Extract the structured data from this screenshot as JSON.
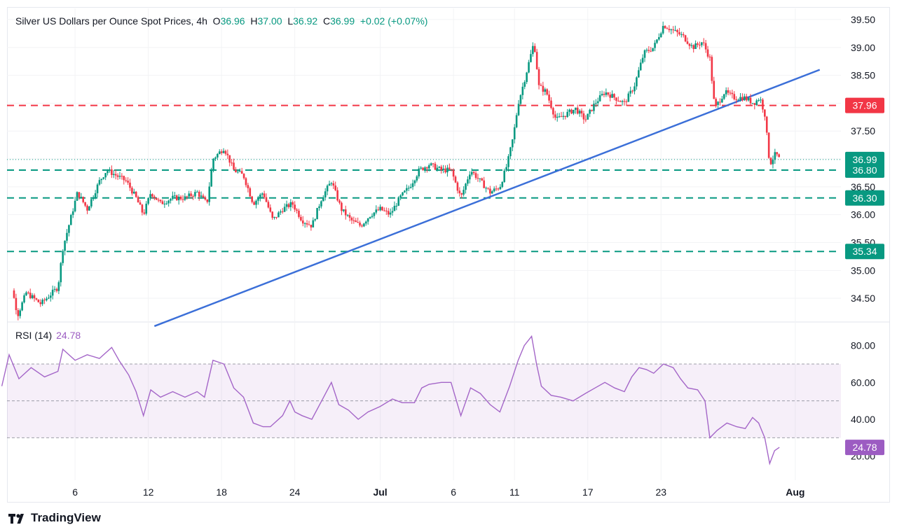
{
  "header": {
    "title": "Silver US Dollars per Ounce Spot Prices, 4h",
    "open_label": "O",
    "open": "36.96",
    "high_label": "H",
    "high": "37.00",
    "low_label": "L",
    "low": "36.92",
    "close_label": "C",
    "close": "36.99",
    "change": "+0.02 (+0.07%)"
  },
  "rsi_header": {
    "label": "RSI (14)",
    "value": "24.78"
  },
  "footer": {
    "brand": "TradingView"
  },
  "colors": {
    "up": "#089981",
    "down": "#f23645",
    "trend": "#3b6fd8",
    "rsi": "#a466c8",
    "support": "#089981",
    "resistance": "#f23645"
  },
  "chart_data": [
    {
      "type": "candlestick",
      "title": "Silver US Dollars per Ounce Spot Prices, 4h",
      "timeframe": "4h",
      "y_ticks": [
        "34.50",
        "35.00",
        "35.50",
        "36.00",
        "36.50",
        "37.00",
        "37.50",
        "38.00",
        "38.50",
        "39.00",
        "39.50"
      ],
      "ylim": [
        34.1,
        39.7
      ],
      "x_ticks": [
        {
          "label": "6",
          "d": 6
        },
        {
          "label": "12",
          "d": 12
        },
        {
          "label": "18",
          "d": 18
        },
        {
          "label": "24",
          "d": 24
        },
        {
          "label": "Jul",
          "d": 31
        },
        {
          "label": "6",
          "d": 37
        },
        {
          "label": "11",
          "d": 42
        },
        {
          "label": "17",
          "d": 48
        },
        {
          "label": "23",
          "d": 54
        },
        {
          "label": "Aug",
          "d": 65
        }
      ],
      "price_path": [
        [
          0.0,
          34.3
        ],
        [
          0.7,
          34.8
        ],
        [
          1.3,
          34.2
        ],
        [
          2.0,
          34.6
        ],
        [
          3.2,
          34.4
        ],
        [
          4.6,
          34.7
        ],
        [
          5.0,
          35.4
        ],
        [
          5.6,
          35.9
        ],
        [
          6.2,
          36.4
        ],
        [
          7.0,
          36.1
        ],
        [
          8.0,
          36.6
        ],
        [
          8.6,
          36.8
        ],
        [
          9.4,
          36.7
        ],
        [
          10.2,
          36.6
        ],
        [
          11.0,
          36.3
        ],
        [
          11.6,
          36.0
        ],
        [
          12.2,
          36.4
        ],
        [
          13.0,
          36.2
        ],
        [
          14.0,
          36.3
        ],
        [
          15.0,
          36.3
        ],
        [
          16.0,
          36.4
        ],
        [
          16.8,
          36.2
        ],
        [
          17.3,
          37.0
        ],
        [
          18.2,
          37.2
        ],
        [
          19.0,
          36.8
        ],
        [
          19.8,
          36.7
        ],
        [
          20.6,
          36.2
        ],
        [
          21.4,
          36.4
        ],
        [
          22.2,
          35.9
        ],
        [
          23.0,
          36.1
        ],
        [
          23.8,
          36.2
        ],
        [
          24.6,
          35.9
        ],
        [
          25.4,
          35.8
        ],
        [
          26.2,
          36.3
        ],
        [
          27.0,
          36.6
        ],
        [
          27.8,
          36.1
        ],
        [
          28.6,
          35.9
        ],
        [
          29.4,
          35.8
        ],
        [
          30.2,
          36.0
        ],
        [
          31.0,
          36.1
        ],
        [
          31.8,
          36.0
        ],
        [
          32.6,
          36.3
        ],
        [
          33.4,
          36.5
        ],
        [
          34.2,
          36.8
        ],
        [
          35.0,
          36.9
        ],
        [
          36.0,
          36.8
        ],
        [
          36.8,
          36.8
        ],
        [
          37.6,
          36.3
        ],
        [
          38.4,
          36.8
        ],
        [
          39.2,
          36.6
        ],
        [
          40.0,
          36.4
        ],
        [
          40.8,
          36.5
        ],
        [
          41.4,
          36.9
        ],
        [
          41.9,
          37.4
        ],
        [
          42.3,
          38.0
        ],
        [
          42.8,
          38.4
        ],
        [
          43.6,
          39.1
        ],
        [
          44.0,
          38.3
        ],
        [
          44.6,
          38.2
        ],
        [
          45.4,
          37.7
        ],
        [
          46.2,
          37.8
        ],
        [
          47.0,
          37.9
        ],
        [
          47.8,
          37.7
        ],
        [
          48.6,
          38.0
        ],
        [
          49.4,
          38.2
        ],
        [
          50.2,
          38.1
        ],
        [
          51.0,
          38.0
        ],
        [
          51.8,
          38.3
        ],
        [
          52.6,
          38.9
        ],
        [
          53.4,
          39.0
        ],
        [
          54.2,
          39.4
        ],
        [
          55.0,
          39.3
        ],
        [
          55.8,
          39.2
        ],
        [
          56.6,
          39.0
        ],
        [
          57.4,
          39.1
        ],
        [
          58.0,
          38.8
        ],
        [
          58.4,
          37.9
        ],
        [
          59.2,
          38.2
        ],
        [
          60.0,
          38.1
        ],
        [
          60.8,
          38.1
        ],
        [
          61.6,
          38.0
        ],
        [
          62.1,
          38.1
        ],
        [
          62.5,
          37.8
        ],
        [
          62.9,
          36.9
        ],
        [
          63.4,
          37.1
        ],
        [
          63.7,
          36.99
        ]
      ],
      "levels": [
        {
          "label": "37.96",
          "value": 37.96,
          "style": "resistance"
        },
        {
          "label": "36.80",
          "value": 36.8,
          "style": "support"
        },
        {
          "label": "36.30",
          "value": 36.3,
          "style": "support"
        },
        {
          "label": "35.34",
          "value": 35.34,
          "style": "support"
        }
      ],
      "current_price": {
        "label": "36.99",
        "value": 36.99
      },
      "trendline": [
        [
          12.5,
          34.0
        ],
        [
          67.0,
          38.6
        ]
      ]
    },
    {
      "type": "line",
      "title": "RSI (14)",
      "value_label": "24.78",
      "y_ticks": [
        "20.00",
        "40.00",
        "60.00",
        "80.00"
      ],
      "ylim": [
        7,
        92
      ],
      "bands": {
        "upper": 70,
        "middle": 50,
        "lower": 30
      },
      "rsi_path": [
        [
          0.0,
          58
        ],
        [
          0.6,
          75
        ],
        [
          1.4,
          62
        ],
        [
          2.4,
          68
        ],
        [
          3.5,
          63
        ],
        [
          4.6,
          66
        ],
        [
          5.0,
          78
        ],
        [
          6.0,
          72
        ],
        [
          7.0,
          75
        ],
        [
          8.0,
          73
        ],
        [
          9.0,
          79
        ],
        [
          9.6,
          72
        ],
        [
          10.4,
          64
        ],
        [
          11.0,
          55
        ],
        [
          11.6,
          42
        ],
        [
          12.2,
          56
        ],
        [
          13.0,
          52
        ],
        [
          14.0,
          55
        ],
        [
          15.0,
          52
        ],
        [
          16.0,
          55
        ],
        [
          16.6,
          52
        ],
        [
          17.3,
          72
        ],
        [
          18.2,
          70
        ],
        [
          19.0,
          57
        ],
        [
          19.8,
          52
        ],
        [
          20.6,
          38
        ],
        [
          21.4,
          36
        ],
        [
          22.0,
          36
        ],
        [
          23.0,
          42
        ],
        [
          23.6,
          50
        ],
        [
          24.0,
          44
        ],
        [
          24.6,
          42
        ],
        [
          25.4,
          40
        ],
        [
          26.2,
          50
        ],
        [
          27.0,
          60
        ],
        [
          27.6,
          48
        ],
        [
          28.4,
          45
        ],
        [
          29.2,
          40
        ],
        [
          30.0,
          44
        ],
        [
          31.0,
          47
        ],
        [
          32.0,
          51
        ],
        [
          32.8,
          49
        ],
        [
          33.8,
          49
        ],
        [
          34.4,
          57
        ],
        [
          35.0,
          59
        ],
        [
          36.0,
          60
        ],
        [
          36.8,
          60
        ],
        [
          37.6,
          42
        ],
        [
          38.4,
          57
        ],
        [
          39.2,
          54
        ],
        [
          40.0,
          48
        ],
        [
          40.8,
          44
        ],
        [
          41.6,
          58
        ],
        [
          42.3,
          72
        ],
        [
          42.8,
          80
        ],
        [
          43.4,
          85
        ],
        [
          43.8,
          70
        ],
        [
          44.2,
          58
        ],
        [
          45.0,
          53
        ],
        [
          45.8,
          52
        ],
        [
          46.8,
          50
        ],
        [
          47.8,
          54
        ],
        [
          48.6,
          57
        ],
        [
          49.4,
          60
        ],
        [
          50.2,
          57
        ],
        [
          51.0,
          55
        ],
        [
          51.6,
          63
        ],
        [
          52.2,
          68
        ],
        [
          52.8,
          67
        ],
        [
          53.4,
          65
        ],
        [
          54.2,
          70
        ],
        [
          55.0,
          68
        ],
        [
          55.6,
          62
        ],
        [
          56.2,
          57
        ],
        [
          57.0,
          56
        ],
        [
          57.6,
          50
        ],
        [
          58.0,
          30
        ],
        [
          58.6,
          34
        ],
        [
          59.4,
          38
        ],
        [
          60.2,
          36
        ],
        [
          60.9,
          35
        ],
        [
          61.5,
          41
        ],
        [
          62.0,
          38
        ],
        [
          62.5,
          30
        ],
        [
          62.9,
          16
        ],
        [
          63.3,
          23
        ],
        [
          63.7,
          24.78
        ]
      ]
    }
  ]
}
